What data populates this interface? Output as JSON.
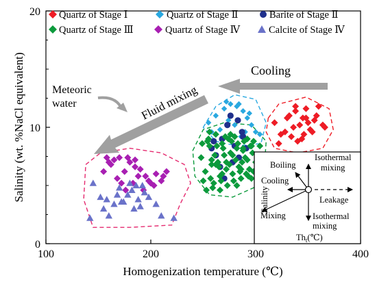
{
  "chart_data": {
    "type": "scatter",
    "xlabel": "Homogenization temperature (℃)",
    "ylabel": "Salinity (wt. %NaCl equivalent)",
    "xlim": [
      100,
      400
    ],
    "ylim": [
      0,
      20
    ],
    "xticks": [
      "100",
      "200",
      "300",
      "400"
    ],
    "yticks": [
      "0",
      "10",
      "20"
    ],
    "legend": [
      {
        "label": "Quartz of Stage Ⅰ",
        "color": "#ee1c25",
        "marker": "diamond"
      },
      {
        "label": "Quartz of Stage Ⅱ",
        "color": "#29a8e0",
        "marker": "diamond"
      },
      {
        "label": "Barite of Stage Ⅱ",
        "color": "#1f2f8c",
        "marker": "circle"
      },
      {
        "label": "Quartz of Stage Ⅲ",
        "color": "#0c9a3c",
        "marker": "diamond"
      },
      {
        "label": "Quartz of Stage Ⅳ",
        "color": "#a81fb2",
        "marker": "diamond"
      },
      {
        "label": "Calcite of Stage Ⅳ",
        "color": "#6a72c9",
        "marker": "triangle"
      }
    ],
    "series": [
      {
        "name": "Quartz of Stage Ⅰ",
        "color": "#ee1c25",
        "marker": "diamond",
        "x": [
          318,
          324,
          330,
          334,
          338,
          342,
          345,
          348,
          352,
          356,
          360,
          364,
          322,
          328,
          336,
          340,
          346,
          350,
          354,
          358,
          366,
          332,
          338,
          344,
          348
        ],
        "y": [
          10.4,
          9.4,
          10.8,
          9.2,
          11.4,
          10.2,
          10.8,
          11.6,
          9.8,
          10.6,
          11.8,
          10.2,
          8.6,
          9.6,
          10.0,
          8.8,
          9.4,
          10.4,
          9.6,
          11.0,
          10.0,
          11.0,
          11.8,
          9.0,
          10.8
        ]
      },
      {
        "name": "Quartz of Stage Ⅱ",
        "color": "#29a8e0",
        "marker": "diamond",
        "x": [
          255,
          262,
          270,
          276,
          282,
          288,
          292,
          296,
          300,
          304,
          266,
          274,
          280,
          286,
          290,
          298,
          272,
          284,
          258,
          294
        ],
        "y": [
          10.4,
          11.0,
          11.6,
          12.0,
          11.8,
          11.4,
          10.8,
          10.2,
          9.6,
          9.4,
          9.8,
          10.6,
          10.2,
          9.2,
          9.6,
          8.8,
          12.2,
          12.0,
          9.6,
          11.2
        ],
        "marker_size": "small"
      },
      {
        "name": "Barite of Stage Ⅱ",
        "color": "#1f2f8c",
        "marker": "circle",
        "x": [
          276,
          283,
          273,
          287,
          258,
          268,
          262,
          280,
          291,
          266,
          270,
          278,
          284,
          288,
          260
        ],
        "y": [
          11.0,
          10.6,
          10.2,
          9.6,
          8.2,
          9.0,
          7.6,
          8.4,
          8.2,
          6.6,
          5.6,
          7.0,
          7.4,
          9.2,
          8.8
        ]
      },
      {
        "name": "Quartz of Stage Ⅲ",
        "color": "#0c9a3c",
        "marker": "diamond",
        "x": [
          248,
          252,
          256,
          260,
          264,
          268,
          272,
          276,
          280,
          284,
          288,
          292,
          296,
          300,
          250,
          254,
          258,
          262,
          266,
          270,
          274,
          278,
          282,
          286,
          290,
          294,
          298,
          302,
          253,
          257,
          261,
          265,
          269,
          273,
          277,
          281,
          285,
          289,
          293,
          297,
          255,
          259,
          263,
          267,
          271,
          275,
          279,
          283,
          287,
          291,
          295,
          249,
          258,
          268,
          278,
          288,
          298,
          262,
          272,
          282,
          292,
          256,
          266,
          276,
          286,
          296,
          304
        ],
        "y": [
          7.4,
          6.2,
          8.4,
          5.2,
          7.0,
          8.6,
          6.4,
          7.8,
          9.2,
          6.6,
          8.0,
          7.2,
          8.4,
          7.0,
          5.4,
          8.8,
          6.8,
          9.4,
          5.8,
          7.6,
          9.0,
          6.0,
          8.2,
          5.6,
          7.4,
          6.4,
          8.8,
          7.6,
          4.6,
          5.6,
          7.6,
          6.6,
          8.2,
          5.0,
          8.8,
          7.2,
          6.2,
          8.8,
          5.8,
          7.8,
          9.0,
          4.8,
          8.4,
          5.4,
          9.2,
          6.8,
          5.4,
          8.6,
          7.0,
          6.0,
          8.4,
          8.6,
          7.2,
          6.0,
          7.6,
          8.2,
          6.2,
          6.8,
          7.0,
          5.0,
          9.0,
          9.6,
          4.6,
          9.4,
          6.4,
          5.6,
          8.4
        ]
      },
      {
        "name": "Quartz of Stage Ⅳ",
        "color": "#a81fb2",
        "marker": "diamond",
        "x": [
          155,
          162,
          170,
          175,
          180,
          185,
          190,
          195,
          200,
          205,
          210,
          215,
          165,
          172,
          178,
          183,
          188,
          193,
          198,
          160,
          168,
          185,
          176,
          203,
          212,
          158
        ],
        "y": [
          6.2,
          6.8,
          7.4,
          6.2,
          7.0,
          7.2,
          6.4,
          5.8,
          5.2,
          6.0,
          5.4,
          6.2,
          7.2,
          5.2,
          7.4,
          5.2,
          5.8,
          4.6,
          5.4,
          7.0,
          5.6,
          6.6,
          4.6,
          5.0,
          5.8,
          7.4
        ]
      },
      {
        "name": "Calcite of Stage Ⅳ",
        "color": "#6a72c9",
        "marker": "triangle",
        "x": [
          145,
          152,
          158,
          165,
          170,
          174,
          178,
          182,
          186,
          190,
          194,
          198,
          205,
          210,
          155,
          168,
          180,
          188,
          192,
          172,
          184,
          160,
          142,
          222
        ],
        "y": [
          5.2,
          4.0,
          3.8,
          3.4,
          4.8,
          3.6,
          4.2,
          4.6,
          5.0,
          3.2,
          4.4,
          4.0,
          3.4,
          2.4,
          3.0,
          4.2,
          5.2,
          3.8,
          5.0,
          3.6,
          3.0,
          2.4,
          2.2,
          2.2
        ]
      }
    ],
    "regions": [
      {
        "name": "stage-1-envelope",
        "color": "#ee1c25",
        "polygon": [
          [
            312,
            10.8
          ],
          [
            322,
            12.0
          ],
          [
            348,
            12.6
          ],
          [
            370,
            11.6
          ],
          [
            374,
            9.8
          ],
          [
            364,
            8.2
          ],
          [
            340,
            7.8
          ],
          [
            318,
            8.2
          ],
          [
            310,
            9.6
          ]
        ]
      },
      {
        "name": "stage-2-envelope",
        "color": "#29a8e0",
        "polygon": [
          [
            250,
            10.0
          ],
          [
            262,
            11.8
          ],
          [
            280,
            12.8
          ],
          [
            300,
            12.4
          ],
          [
            310,
            10.4
          ],
          [
            305,
            8.6
          ],
          [
            282,
            8.4
          ],
          [
            262,
            8.8
          ]
        ]
      },
      {
        "name": "stage-3-envelope",
        "color": "#0c9a3c",
        "polygon": [
          [
            240,
            8.0
          ],
          [
            250,
            9.8
          ],
          [
            270,
            10.4
          ],
          [
            296,
            10.2
          ],
          [
            310,
            8.8
          ],
          [
            308,
            6.2
          ],
          [
            298,
            4.8
          ],
          [
            278,
            4.0
          ],
          [
            256,
            4.2
          ],
          [
            242,
            5.8
          ]
        ]
      },
      {
        "name": "stage-4-envelope",
        "color": "#e52a6f",
        "polygon": [
          [
            138,
            6.8
          ],
          [
            152,
            7.8
          ],
          [
            180,
            8.2
          ],
          [
            210,
            7.8
          ],
          [
            232,
            6.8
          ],
          [
            238,
            5.2
          ],
          [
            228,
            3.4
          ],
          [
            220,
            1.6
          ],
          [
            180,
            1.4
          ],
          [
            145,
            1.4
          ],
          [
            136,
            3.8
          ]
        ]
      }
    ],
    "annotations": {
      "cooling": "Cooling",
      "fluid_mixing": "Fluid mixing",
      "meteoric_line1": "Meteoric",
      "meteoric_line2": "water"
    },
    "inset": {
      "boiling": "Boiling",
      "isothermal_top_line1": "Isothermal",
      "isothermal_top_line2": "mixing",
      "cooling": "Cooling",
      "leakage": "Leakage",
      "salinity": "Salinity",
      "mixing": "Mixing",
      "isothermal_bottom_line1": "Isothermal",
      "isothermal_bottom_line2": "mixing",
      "th_label": "Th",
      "th_sub": "t",
      "th_unit": "(℃)"
    },
    "grid": false,
    "legend_position": "top"
  }
}
